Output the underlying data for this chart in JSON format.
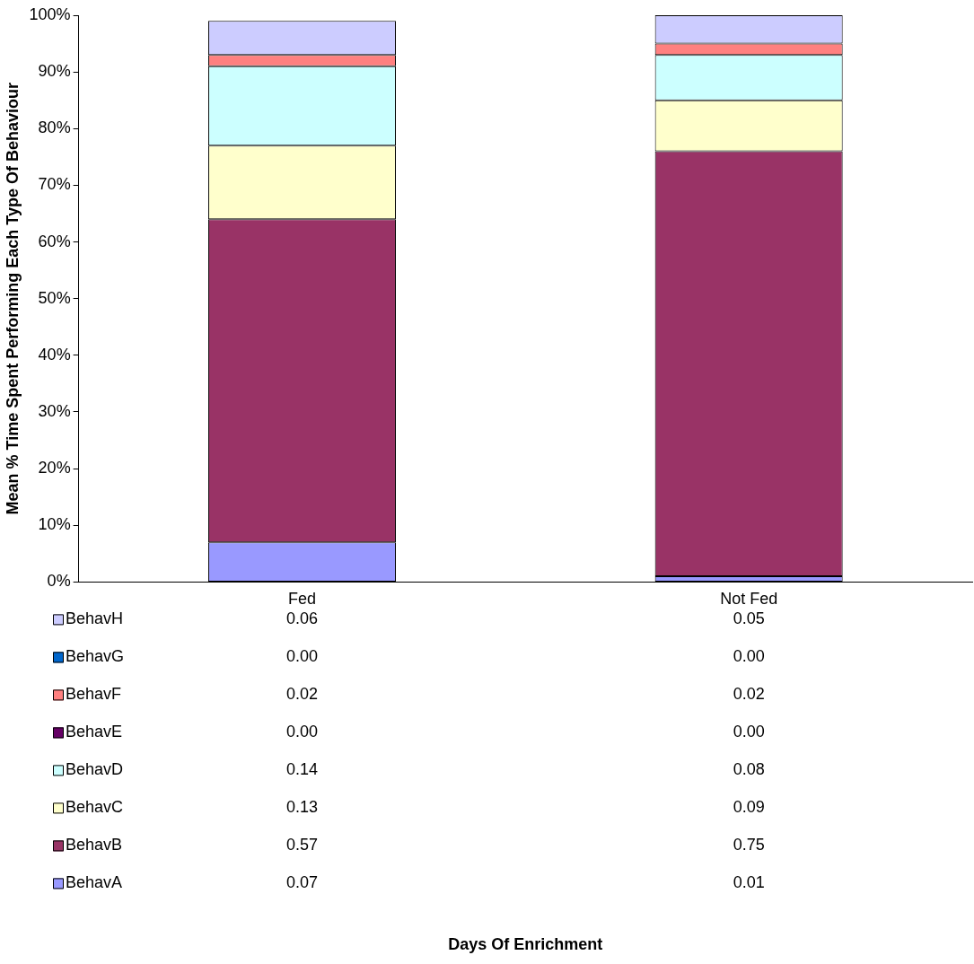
{
  "chart_data": {
    "type": "bar",
    "stacked": true,
    "ylabel": "Mean % Time Spent Performing Each Type Of Behaviour",
    "annotations": [
      "Days Of Enrichment"
    ],
    "categories": [
      "Fed",
      "Not Fed"
    ],
    "ylim": [
      0,
      1
    ],
    "yticks": [
      {
        "value": 0,
        "label": "0%"
      },
      {
        "value": 0.1,
        "label": "10%"
      },
      {
        "value": 0.2,
        "label": "20%"
      },
      {
        "value": 0.3,
        "label": "30%"
      },
      {
        "value": 0.4,
        "label": "40%"
      },
      {
        "value": 0.5,
        "label": "50%"
      },
      {
        "value": 0.6,
        "label": "60%"
      },
      {
        "value": 0.7,
        "label": "70%"
      },
      {
        "value": 0.8,
        "label": "80%"
      },
      {
        "value": 0.9,
        "label": "90%"
      },
      {
        "value": 1,
        "label": "100%"
      }
    ],
    "grid": false,
    "legend": "bottom left",
    "series": [
      {
        "name": "BehavA",
        "color": "#9999ff",
        "values": [
          0.07,
          0.01
        ],
        "value_labels": [
          "0.07",
          "0.01"
        ]
      },
      {
        "name": "BehavB",
        "color": "#993366",
        "values": [
          0.57,
          0.75
        ],
        "value_labels": [
          "0.57",
          "0.75"
        ]
      },
      {
        "name": "BehavC",
        "color": "#ffffcc",
        "values": [
          0.13,
          0.09
        ],
        "value_labels": [
          "0.13",
          "0.09"
        ]
      },
      {
        "name": "BehavD",
        "color": "#ccffff",
        "values": [
          0.14,
          0.08
        ],
        "value_labels": [
          "0.14",
          "0.08"
        ]
      },
      {
        "name": "BehavE",
        "color": "#660066",
        "values": [
          0,
          0
        ],
        "value_labels": [
          "0.00",
          "0.00"
        ]
      },
      {
        "name": "BehavF",
        "color": "#ff8080",
        "values": [
          0.02,
          0.02
        ],
        "value_labels": [
          "0.02",
          "0.02"
        ]
      },
      {
        "name": "BehavG",
        "color": "#0066cc",
        "values": [
          0,
          0
        ],
        "value_labels": [
          "0.00",
          "0.00"
        ]
      },
      {
        "name": "BehavH",
        "color": "#ccccff",
        "values": [
          0.06,
          0.05
        ],
        "value_labels": [
          "0.06",
          "0.05"
        ]
      }
    ]
  }
}
